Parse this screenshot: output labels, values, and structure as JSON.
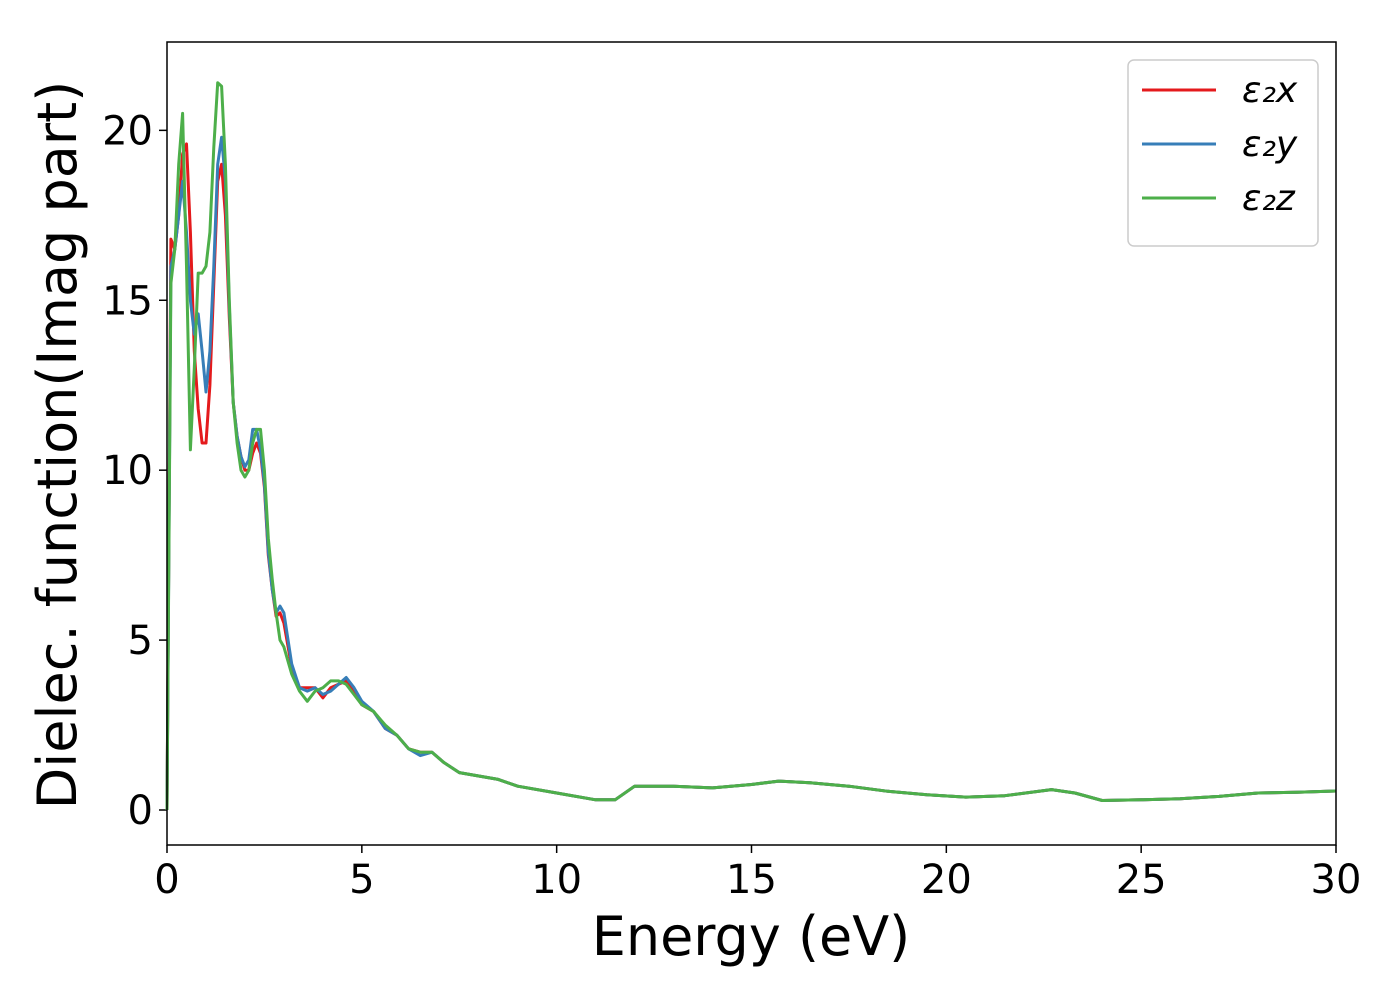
{
  "chart_data": {
    "type": "line",
    "xlabel": "Energy (eV)",
    "ylabel": "Dielec. function(Imag part)",
    "xlim": [
      0,
      30
    ],
    "ylim": [
      -1.03,
      22.6
    ],
    "xticks": [
      0,
      5,
      10,
      15,
      20,
      25,
      30
    ],
    "yticks": [
      0,
      5,
      10,
      15,
      20
    ],
    "grid": false,
    "legend": "upper right",
    "x": [
      0,
      0.1,
      0.2,
      0.3,
      0.4,
      0.5,
      0.6,
      0.7,
      0.8,
      0.9,
      1.0,
      1.1,
      1.2,
      1.3,
      1.4,
      1.5,
      1.6,
      1.7,
      1.8,
      1.9,
      2.0,
      2.1,
      2.2,
      2.3,
      2.4,
      2.5,
      2.6,
      2.7,
      2.8,
      2.9,
      3.0,
      3.2,
      3.4,
      3.6,
      3.8,
      4.0,
      4.2,
      4.4,
      4.6,
      4.8,
      5.0,
      5.3,
      5.6,
      5.9,
      6.2,
      6.5,
      6.8,
      7.1,
      7.5,
      8.0,
      8.5,
      9.0,
      10,
      11,
      11.5,
      12,
      13,
      14,
      15,
      15.7,
      16.5,
      17.5,
      18.5,
      19.5,
      20.5,
      21.5,
      22.7,
      23.3,
      24,
      25,
      26,
      27,
      28,
      29,
      30
    ],
    "series": [
      {
        "name": "ε₂x",
        "color": "#e41a1c",
        "values": [
          0,
          16.8,
          16.5,
          17.5,
          19.3,
          19.6,
          17,
          13.5,
          11.8,
          10.8,
          10.8,
          12.5,
          15.5,
          18.5,
          19.0,
          17.5,
          14.5,
          12,
          11,
          10.4,
          10,
          10,
          10.5,
          10.8,
          10.5,
          9.5,
          7.5,
          6.5,
          5.7,
          5.8,
          5.5,
          4.2,
          3.6,
          3.6,
          3.6,
          3.3,
          3.6,
          3.7,
          3.8,
          3.5,
          3.1,
          2.9,
          2.4,
          2.2,
          1.8,
          1.7,
          1.7,
          1.4,
          1.1,
          1.0,
          0.9,
          0.7,
          0.5,
          0.3,
          0.3,
          0.7,
          0.7,
          0.65,
          0.75,
          0.85,
          0.8,
          0.7,
          0.55,
          0.45,
          0.38,
          0.42,
          0.6,
          0.5,
          0.28,
          0.3,
          0.33,
          0.4,
          0.5,
          0.52,
          0.56
        ]
      },
      {
        "name": "ε₂y",
        "color": "#377eb8",
        "values": [
          0,
          16,
          16.5,
          17.5,
          18.5,
          17,
          15,
          14,
          14.6,
          13.5,
          12.3,
          13.5,
          16,
          19,
          19.8,
          18.5,
          14.8,
          12,
          11,
          10.4,
          10.1,
          10.3,
          11.2,
          11.2,
          10.6,
          9.6,
          7.6,
          6.5,
          5.8,
          6.0,
          5.8,
          4.3,
          3.6,
          3.5,
          3.6,
          3.4,
          3.5,
          3.7,
          3.9,
          3.6,
          3.2,
          2.9,
          2.4,
          2.2,
          1.8,
          1.6,
          1.7,
          1.4,
          1.1,
          1.0,
          0.9,
          0.7,
          0.5,
          0.3,
          0.3,
          0.7,
          0.7,
          0.65,
          0.75,
          0.85,
          0.8,
          0.7,
          0.55,
          0.45,
          0.38,
          0.42,
          0.6,
          0.5,
          0.28,
          0.3,
          0.33,
          0.4,
          0.5,
          0.52,
          0.56
        ]
      },
      {
        "name": "ε₂z",
        "color": "#4daf4a",
        "values": [
          0,
          15.5,
          16.5,
          19,
          20.5,
          16,
          10.6,
          13,
          15.8,
          15.8,
          16,
          17,
          19.5,
          21.4,
          21.3,
          19,
          15,
          12,
          10.8,
          10,
          9.8,
          10,
          10.8,
          11.2,
          11.2,
          10,
          8,
          6.8,
          5.8,
          5.0,
          4.8,
          4.0,
          3.5,
          3.2,
          3.5,
          3.6,
          3.8,
          3.8,
          3.7,
          3.4,
          3.1,
          2.9,
          2.5,
          2.2,
          1.8,
          1.7,
          1.7,
          1.4,
          1.1,
          1.0,
          0.9,
          0.7,
          0.5,
          0.3,
          0.3,
          0.7,
          0.7,
          0.65,
          0.75,
          0.85,
          0.8,
          0.7,
          0.55,
          0.45,
          0.38,
          0.42,
          0.6,
          0.5,
          0.28,
          0.3,
          0.33,
          0.4,
          0.5,
          0.52,
          0.56
        ]
      }
    ]
  }
}
